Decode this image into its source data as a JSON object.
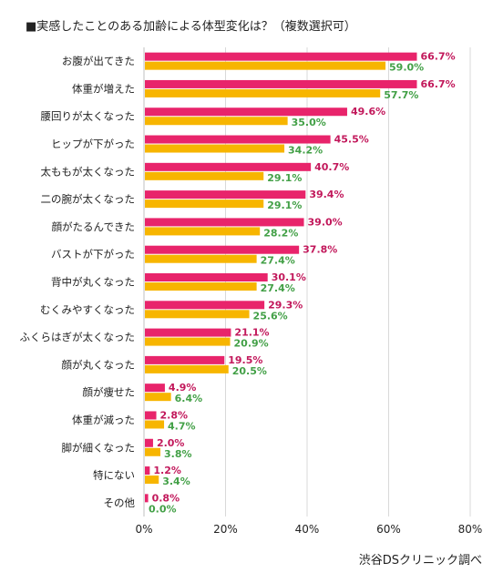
{
  "chart_data": {
    "type": "bar",
    "orientation": "horizontal",
    "title": "■実感したことのある加齢による体型変化は？（複数選択可）",
    "source": "渋谷DSクリニック調べ",
    "categories": [
      "お腹が出てきた",
      "体重が増えた",
      "腰回りが太くなった",
      "ヒップが下がった",
      "太ももが太くなった",
      "二の腕が太くなった",
      "顔がたるんできた",
      "バストが下がった",
      "背中が丸くなった",
      "むくみやすくなった",
      "ふくらはぎが太くなった",
      "顔が丸くなった",
      "顔が痩せた",
      "体重が減った",
      "脚が細くなった",
      "特にない",
      "その他"
    ],
    "series": [
      {
        "color": "#e8246b",
        "label_color": "#c2185b",
        "values": [
          66.7,
          66.7,
          49.6,
          45.5,
          40.7,
          39.4,
          39.0,
          37.8,
          30.1,
          29.3,
          21.1,
          19.5,
          4.9,
          2.8,
          2.0,
          1.2,
          0.8
        ],
        "labels": [
          "66.7%",
          "66.7%",
          "49.6%",
          "45.5%",
          "40.7%",
          "39.4%",
          "39.0%",
          "37.8%",
          "30.1%",
          "29.3%",
          "21.1%",
          "19.5%",
          "4.9%",
          "2.8%",
          "2.0%",
          "1.2%",
          "0.8%"
        ]
      },
      {
        "color": "#f7b500",
        "label_color": "#43a047",
        "values": [
          59.0,
          57.7,
          35.0,
          34.2,
          29.1,
          29.1,
          28.2,
          27.4,
          27.4,
          25.6,
          20.9,
          20.5,
          6.4,
          4.7,
          3.8,
          3.4,
          0.0
        ],
        "labels": [
          "59.0%",
          "57.7%",
          "35.0%",
          "34.2%",
          "29.1%",
          "29.1%",
          "28.2%",
          "27.4%",
          "27.4%",
          "25.6%",
          "20.9%",
          "20.5%",
          "6.4%",
          "4.7%",
          "3.8%",
          "3.4%",
          "0.0%"
        ]
      }
    ],
    "x_ticks": [
      "0%",
      "20%",
      "40%",
      "60%",
      "80%"
    ],
    "xlim": [
      0,
      80
    ],
    "grid": true,
    "legend": "none"
  }
}
